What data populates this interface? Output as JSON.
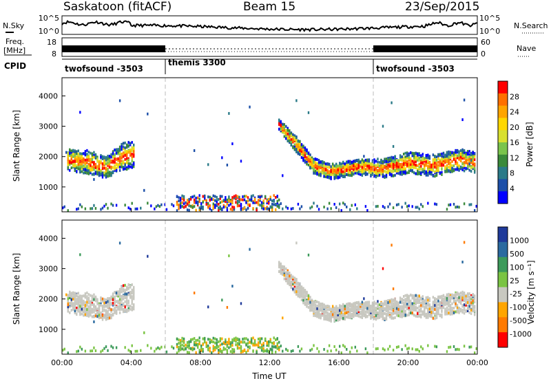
{
  "header": {
    "title": "Saskatoon (fitACF)",
    "beam": "Beam 15",
    "date": "23/Sep/2015"
  },
  "sky_panel": {
    "left_label": "N.Sky",
    "right_label": "N.Search",
    "left_ticks": [
      "10^5",
      "10^0"
    ],
    "right_ticks": [
      "10^5",
      "10^0"
    ]
  },
  "freq_panel": {
    "left_label": "Freq.",
    "left_unit": "[MHz]",
    "right_label": "Nave",
    "left_ticks": [
      "18",
      "8"
    ],
    "right_ticks": [
      "60",
      "0"
    ]
  },
  "cpid_panel": {
    "label": "CPID",
    "modes": [
      {
        "name": "twofsound -3503",
        "start_hour": 0
      },
      {
        "name": "themis 3300",
        "start_hour": 6
      },
      {
        "name": "twofsound -3503",
        "start_hour": 18
      }
    ]
  },
  "x_axis": {
    "title": "Time UT",
    "ticks": [
      "00:00",
      "04:00",
      "08:00",
      "12:00",
      "16:00",
      "20:00",
      "00:00"
    ],
    "range_hours": [
      0,
      24
    ],
    "dashed_mode_boundaries_hours": [
      6,
      18
    ]
  },
  "chart_data": [
    {
      "type": "heatmap",
      "name": "power",
      "ylabel": "Slant Range [km]",
      "yticks": [
        "1000",
        "2000",
        "3000",
        "4000"
      ],
      "ylim": [
        180,
        4600
      ],
      "colorbar": {
        "title": "Power [dB]",
        "labels": [
          "28",
          "24",
          "20",
          "16",
          "12",
          "8",
          "4"
        ],
        "colors": [
          "#ff0000",
          "#ff7000",
          "#ffa500",
          "#ffd700",
          "#d8e030",
          "#7ac44c",
          "#3a8a3a",
          "#2a7a88",
          "#1c4fa8",
          "#0000ff"
        ]
      },
      "scatter_band": [
        {
          "hour": 0.3,
          "center": 1900,
          "half_width": 350
        },
        {
          "hour": 1.5,
          "center": 1800,
          "half_width": 400
        },
        {
          "hour": 2.5,
          "center": 1650,
          "half_width": 350
        },
        {
          "hour": 3.5,
          "center": 2000,
          "half_width": 450
        },
        {
          "hour": 12.5,
          "center": 3050,
          "half_width": 180
        },
        {
          "hour": 13.5,
          "center": 2400,
          "half_width": 250
        },
        {
          "hour": 14.5,
          "center": 1700,
          "half_width": 250
        },
        {
          "hour": 15.5,
          "center": 1500,
          "half_width": 250
        },
        {
          "hour": 17.0,
          "center": 1650,
          "half_width": 250
        },
        {
          "hour": 18.5,
          "center": 1600,
          "half_width": 300
        },
        {
          "hour": 20.0,
          "center": 1800,
          "half_width": 350
        },
        {
          "hour": 21.5,
          "center": 1700,
          "half_width": 350
        },
        {
          "hour": 23.0,
          "center": 1900,
          "half_width": 350
        },
        {
          "hour": 23.9,
          "center": 1800,
          "half_width": 350
        }
      ]
    },
    {
      "type": "heatmap",
      "name": "velocity",
      "ylabel": "Slant Range [km]",
      "yticks": [
        "1000",
        "2000",
        "3000",
        "4000"
      ],
      "ylim": [
        180,
        4600
      ],
      "colorbar": {
        "title": "Velocity [m s⁻¹]",
        "labels": [
          "1000",
          "500",
          "100",
          "25",
          "-25",
          "-100",
          "-500",
          "-1000"
        ],
        "colors": [
          "#1f3a9a",
          "#2a6aa0",
          "#3c9a5a",
          "#7ac443",
          "#c8c8c0",
          "#ffa500",
          "#ff7a00",
          "#ff0000"
        ]
      }
    }
  ]
}
